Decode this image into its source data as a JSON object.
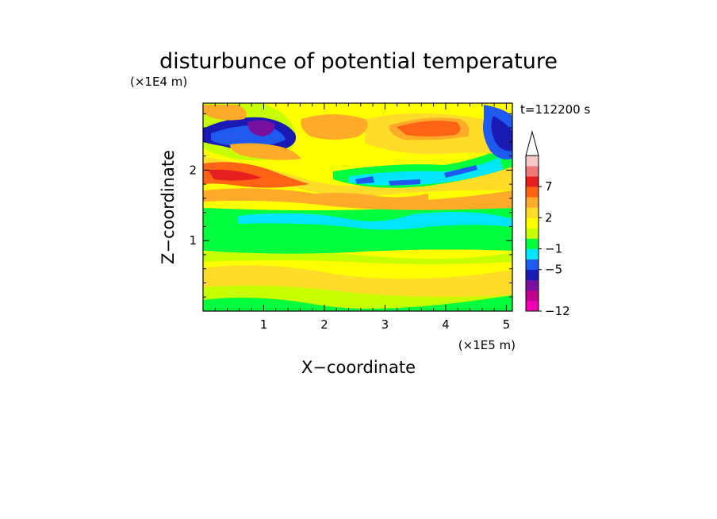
{
  "chart_data": {
    "type": "heatmap",
    "title": "disturbunce of potential temperature",
    "xlabel": "X−coordinate",
    "ylabel": "Z−coordinate",
    "x_unit": "(×1E5 m)",
    "y_unit": "(×1E4 m)",
    "time_label": "t=112200 s",
    "xlim": [
      0,
      5.1
    ],
    "ylim": [
      0,
      2.95
    ],
    "x_ticks": [
      "1",
      "2",
      "3",
      "4",
      "5"
    ],
    "y_ticks": [
      "1",
      "2"
    ],
    "colorbar": {
      "levels": [
        "-12",
        "-5",
        "-1",
        "2",
        "7"
      ],
      "colors": [
        "#f000b4",
        "#c0008c",
        "#7a0fa0",
        "#1a1ab4",
        "#1f5af0",
        "#00e6ff",
        "#00ff3c",
        "#c8ff00",
        "#ffff00",
        "#ffdc28",
        "#ffaa28",
        "#ff6414",
        "#e61e1e",
        "#f07878",
        "#f5c8c8"
      ],
      "extend": "max"
    },
    "field_bands": [
      {
        "z_range": [
          2.6,
          2.95
        ],
        "dominant": "-5 to 7",
        "note": "alternating wave pattern, strong negative near x=0.2-1"
      },
      {
        "z_range": [
          1.6,
          2.3
        ],
        "dominant": "-1 to 4"
      },
      {
        "z_range": [
          1.25,
          1.45
        ],
        "dominant": "-1"
      },
      {
        "z_range": [
          0.8,
          1.2
        ],
        "dominant": "0"
      },
      {
        "z_range": [
          0.0,
          0.75
        ],
        "dominant": "1 to 4"
      }
    ]
  }
}
